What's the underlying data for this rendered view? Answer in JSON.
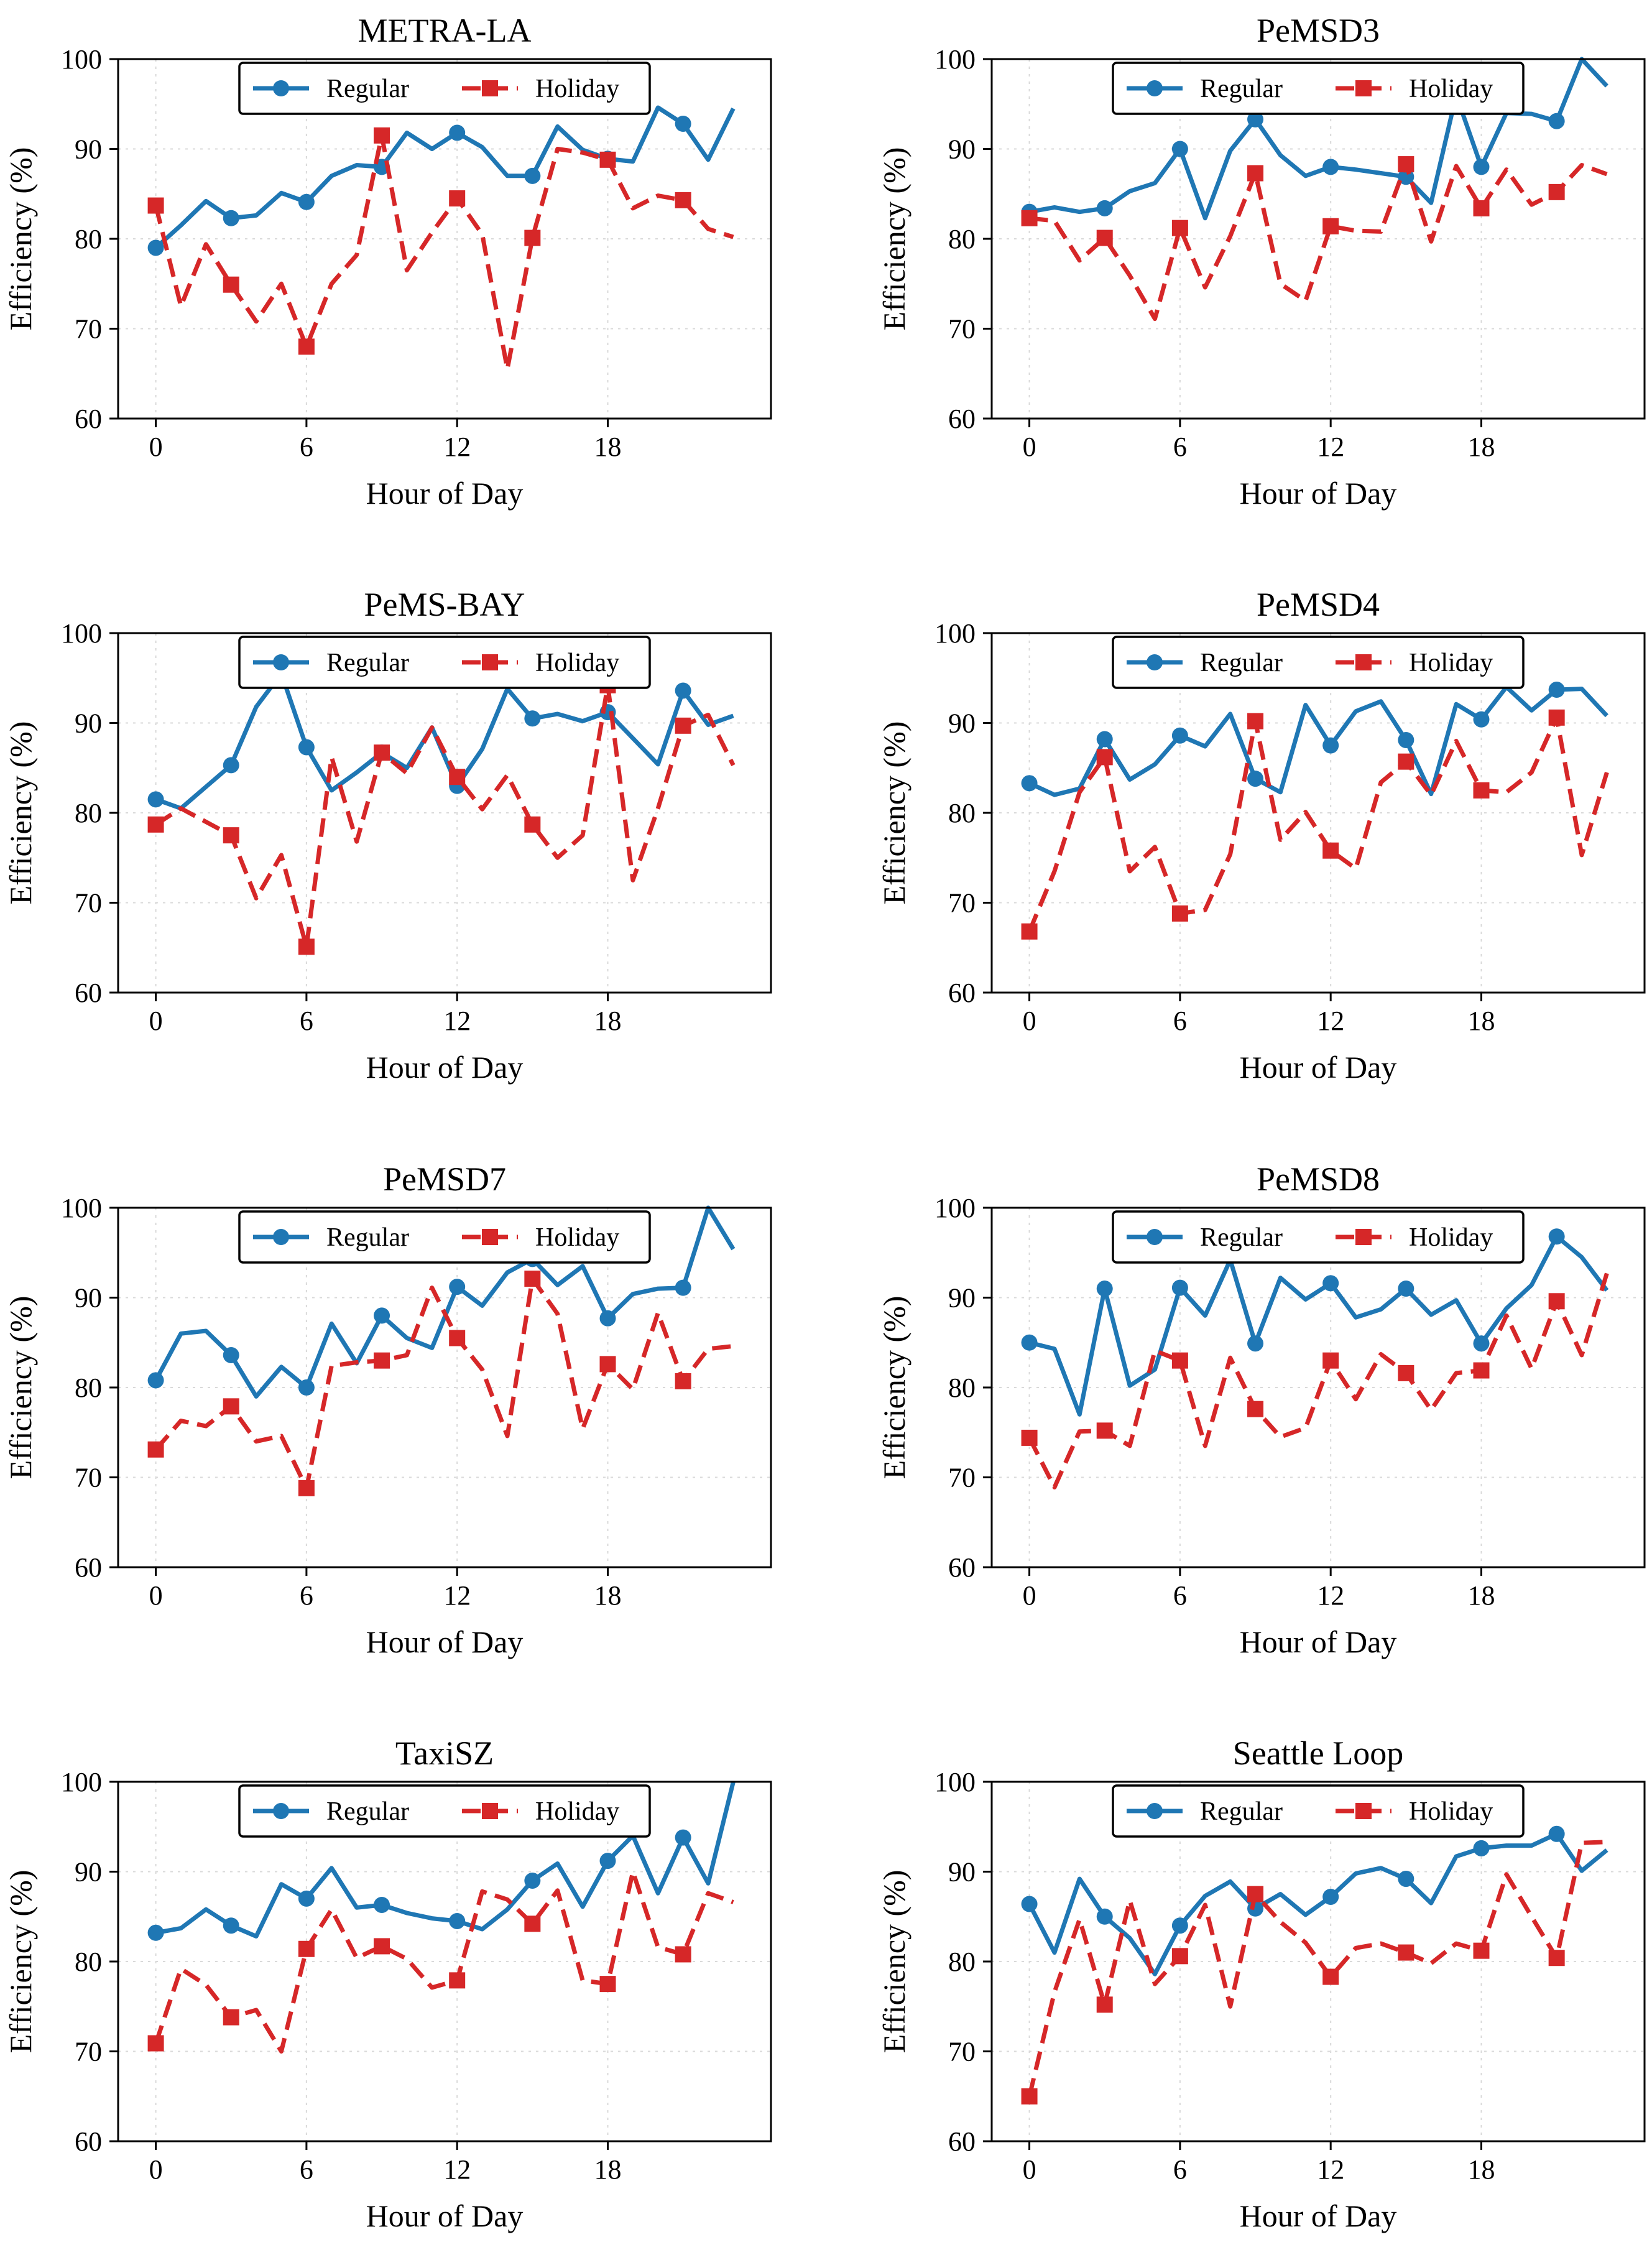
{
  "figure": {
    "series_names": [
      "Regular",
      "Holiday"
    ],
    "colors": {
      "Regular": "#1f77b4",
      "Holiday": "#d62728"
    },
    "icons": {
      "Regular": "circle-marker-solid-line",
      "Holiday": "square-marker-dashed-line"
    }
  },
  "chart_data": [
    {
      "type": "line",
      "title": "METRA-LA",
      "xlabel": "Hour of Day",
      "ylabel": "Efficiency (%)",
      "xlim": [
        -1.5,
        24.5
      ],
      "ylim": [
        60,
        100
      ],
      "xticks": [
        0,
        6,
        12,
        18
      ],
      "yticks": [
        60,
        70,
        80,
        90,
        100
      ],
      "grid": true,
      "legend": "top-center",
      "x": [
        0,
        1,
        2,
        3,
        4,
        5,
        6,
        7,
        8,
        9,
        10,
        11,
        12,
        13,
        14,
        15,
        16,
        17,
        18,
        19,
        20,
        21,
        22,
        23
      ],
      "marker_every": 3,
      "series": [
        {
          "name": "Regular",
          "values": [
            79.0,
            81.5,
            84.2,
            82.3,
            82.6,
            85.1,
            84.1,
            87.0,
            88.2,
            88.0,
            91.8,
            90.0,
            91.8,
            90.2,
            87.0,
            87.0,
            92.5,
            89.9,
            88.9,
            88.6,
            94.6,
            92.8,
            88.8,
            94.5
          ]
        },
        {
          "name": "Holiday",
          "values": [
            83.7,
            72.5,
            79.4,
            74.9,
            70.8,
            75.0,
            68.0,
            75.0,
            78.2,
            91.5,
            76.5,
            80.7,
            84.5,
            80.5,
            65.5,
            80.1,
            90.0,
            89.6,
            88.8,
            83.4,
            84.8,
            84.3,
            81.1,
            80.2
          ]
        }
      ]
    },
    {
      "type": "line",
      "title": "PeMSD3",
      "xlabel": "Hour of Day",
      "ylabel": "Efficiency (%)",
      "xlim": [
        -1.5,
        24.5
      ],
      "ylim": [
        60,
        100
      ],
      "xticks": [
        0,
        6,
        12,
        18
      ],
      "yticks": [
        60,
        70,
        80,
        90,
        100
      ],
      "grid": true,
      "legend": "top-center",
      "x": [
        0,
        1,
        2,
        3,
        4,
        5,
        6,
        7,
        8,
        9,
        10,
        11,
        12,
        13,
        14,
        15,
        16,
        17,
        18,
        19,
        20,
        21,
        22,
        23
      ],
      "marker_every": 3,
      "series": [
        {
          "name": "Regular",
          "values": [
            83.0,
            83.5,
            83.0,
            83.4,
            85.3,
            86.2,
            90.0,
            82.3,
            89.8,
            93.3,
            89.3,
            87.0,
            88.0,
            87.7,
            87.3,
            86.9,
            84.0,
            96.0,
            88.0,
            94.0,
            93.9,
            93.1,
            100.0,
            97.0
          ]
        },
        {
          "name": "Holiday",
          "values": [
            82.3,
            82.0,
            77.6,
            80.1,
            75.9,
            71.1,
            81.2,
            74.6,
            80.3,
            87.3,
            75.0,
            73.1,
            81.4,
            80.9,
            80.8,
            88.3,
            79.7,
            88.1,
            83.4,
            87.7,
            83.8,
            85.2,
            88.2,
            87.2
          ]
        }
      ]
    },
    {
      "type": "line",
      "title": "PeMS-BAY",
      "xlabel": "Hour of Day",
      "ylabel": "Efficiency (%)",
      "xlim": [
        -1.5,
        24.5
      ],
      "ylim": [
        60,
        100
      ],
      "xticks": [
        0,
        6,
        12,
        18
      ],
      "yticks": [
        60,
        70,
        80,
        90,
        100
      ],
      "grid": true,
      "legend": "top-center",
      "x": [
        0,
        1,
        2,
        3,
        4,
        5,
        6,
        7,
        8,
        9,
        10,
        11,
        12,
        13,
        14,
        15,
        16,
        17,
        18,
        19,
        20,
        21,
        22,
        23
      ],
      "marker_every": 3,
      "series": [
        {
          "name": "Regular",
          "values": [
            81.5,
            80.5,
            82.9,
            85.3,
            91.8,
            95.5,
            87.3,
            82.5,
            84.5,
            86.7,
            85.0,
            89.5,
            83.0,
            87.1,
            93.8,
            90.5,
            91.0,
            90.2,
            91.2,
            88.3,
            85.4,
            93.6,
            89.8,
            90.8
          ]
        },
        {
          "name": "Holiday",
          "values": [
            78.7,
            80.5,
            79.0,
            77.5,
            70.5,
            75.3,
            65.1,
            86.2,
            76.8,
            86.7,
            84.4,
            89.5,
            84.0,
            80.4,
            84.2,
            78.7,
            75.0,
            77.5,
            94.2,
            72.5,
            80.5,
            89.7,
            90.9,
            85.3
          ]
        }
      ]
    },
    {
      "type": "line",
      "title": "PeMSD4",
      "xlabel": "Hour of Day",
      "ylabel": "Efficiency (%)",
      "xlim": [
        -1.5,
        24.5
      ],
      "ylim": [
        60,
        100
      ],
      "xticks": [
        0,
        6,
        12,
        18
      ],
      "yticks": [
        60,
        70,
        80,
        90,
        100
      ],
      "grid": true,
      "legend": "top-center",
      "x": [
        0,
        1,
        2,
        3,
        4,
        5,
        6,
        7,
        8,
        9,
        10,
        11,
        12,
        13,
        14,
        15,
        16,
        17,
        18,
        19,
        20,
        21,
        22,
        23
      ],
      "marker_every": 3,
      "series": [
        {
          "name": "Regular",
          "values": [
            83.3,
            82.0,
            82.7,
            88.2,
            83.7,
            85.4,
            88.6,
            87.4,
            91.0,
            83.8,
            82.3,
            92.0,
            87.5,
            91.3,
            92.4,
            88.1,
            82.1,
            92.1,
            90.4,
            94.0,
            91.4,
            93.7,
            93.8,
            90.8
          ]
        },
        {
          "name": "Holiday",
          "values": [
            66.8,
            73.5,
            82.3,
            86.2,
            73.5,
            76.2,
            68.8,
            69.2,
            75.4,
            90.2,
            77.0,
            80.1,
            75.8,
            73.8,
            83.4,
            85.7,
            82.0,
            88.0,
            82.5,
            82.3,
            84.5,
            90.6,
            75.3,
            84.5
          ]
        }
      ]
    },
    {
      "type": "line",
      "title": "PeMSD7",
      "xlabel": "Hour of Day",
      "ylabel": "Efficiency (%)",
      "xlim": [
        -1.5,
        24.5
      ],
      "ylim": [
        60,
        100
      ],
      "xticks": [
        0,
        6,
        12,
        18
      ],
      "yticks": [
        60,
        70,
        80,
        90,
        100
      ],
      "grid": true,
      "legend": "top-center",
      "x": [
        0,
        1,
        2,
        3,
        4,
        5,
        6,
        7,
        8,
        9,
        10,
        11,
        12,
        13,
        14,
        15,
        16,
        17,
        18,
        19,
        20,
        21,
        22,
        23
      ],
      "marker_every": 3,
      "series": [
        {
          "name": "Regular",
          "values": [
            80.8,
            86.0,
            86.3,
            83.6,
            79.0,
            82.3,
            80.0,
            87.1,
            82.7,
            88.0,
            85.5,
            84.4,
            91.2,
            89.1,
            92.8,
            94.3,
            91.4,
            93.5,
            87.7,
            90.4,
            91.0,
            91.1,
            100.0,
            95.4
          ]
        },
        {
          "name": "Holiday",
          "values": [
            73.1,
            76.3,
            75.7,
            77.9,
            74.0,
            74.6,
            68.8,
            82.4,
            82.8,
            83.0,
            83.6,
            91.1,
            85.5,
            82.0,
            74.6,
            92.1,
            88.2,
            75.4,
            82.6,
            79.8,
            88.3,
            80.7,
            84.3,
            84.6
          ]
        }
      ]
    },
    {
      "type": "line",
      "title": "PeMSD8",
      "xlabel": "Hour of Day",
      "ylabel": "Efficiency (%)",
      "xlim": [
        -1.5,
        24.5
      ],
      "ylim": [
        60,
        100
      ],
      "xticks": [
        0,
        6,
        12,
        18
      ],
      "yticks": [
        60,
        70,
        80,
        90,
        100
      ],
      "grid": true,
      "legend": "top-center",
      "x": [
        0,
        1,
        2,
        3,
        4,
        5,
        6,
        7,
        8,
        9,
        10,
        11,
        12,
        13,
        14,
        15,
        16,
        17,
        18,
        19,
        20,
        21,
        22,
        23
      ],
      "marker_every": 3,
      "series": [
        {
          "name": "Regular",
          "values": [
            85.0,
            84.3,
            77.0,
            91.0,
            80.2,
            82.0,
            91.1,
            88.0,
            94.2,
            84.9,
            92.2,
            89.8,
            91.6,
            87.8,
            88.7,
            91.0,
            88.1,
            89.7,
            84.9,
            88.8,
            91.4,
            96.8,
            94.5,
            90.8
          ]
        },
        {
          "name": "Holiday",
          "values": [
            74.4,
            68.9,
            75.1,
            75.2,
            73.5,
            84.1,
            83.0,
            73.5,
            83.3,
            77.6,
            74.5,
            75.5,
            83.0,
            78.7,
            83.7,
            81.6,
            77.5,
            81.6,
            81.9,
            88.0,
            82.1,
            89.6,
            83.6,
            92.7
          ]
        }
      ]
    },
    {
      "type": "line",
      "title": "TaxiSZ",
      "xlabel": "Hour of Day",
      "ylabel": "Efficiency (%)",
      "xlim": [
        -1.5,
        24.5
      ],
      "ylim": [
        60,
        100
      ],
      "xticks": [
        0,
        6,
        12,
        18
      ],
      "yticks": [
        60,
        70,
        80,
        90,
        100
      ],
      "grid": true,
      "legend": "top-center",
      "x": [
        0,
        1,
        2,
        3,
        4,
        5,
        6,
        7,
        8,
        9,
        10,
        11,
        12,
        13,
        14,
        15,
        16,
        17,
        18,
        19,
        20,
        21,
        22,
        23
      ],
      "marker_every": 3,
      "series": [
        {
          "name": "Regular",
          "values": [
            83.2,
            83.7,
            85.8,
            84.0,
            82.8,
            88.6,
            87.0,
            90.4,
            86.0,
            86.3,
            85.4,
            84.8,
            84.5,
            83.6,
            85.8,
            89.0,
            90.9,
            86.1,
            91.2,
            94.0,
            87.6,
            93.8,
            88.7,
            100.0
          ]
        },
        {
          "name": "Holiday",
          "values": [
            70.9,
            79.2,
            77.4,
            73.8,
            74.6,
            70.0,
            81.4,
            85.8,
            80.4,
            81.7,
            80.3,
            77.1,
            77.9,
            87.8,
            86.9,
            84.2,
            87.9,
            77.9,
            77.5,
            90.0,
            81.6,
            80.8,
            87.6,
            86.6
          ]
        }
      ]
    },
    {
      "type": "line",
      "title": "Seattle Loop",
      "xlabel": "Hour of Day",
      "ylabel": "Efficiency (%)",
      "xlim": [
        -1.5,
        24.5
      ],
      "ylim": [
        60,
        100
      ],
      "xticks": [
        0,
        6,
        12,
        18
      ],
      "yticks": [
        60,
        70,
        80,
        90,
        100
      ],
      "grid": true,
      "legend": "top-center",
      "x": [
        0,
        1,
        2,
        3,
        4,
        5,
        6,
        7,
        8,
        9,
        10,
        11,
        12,
        13,
        14,
        15,
        16,
        17,
        18,
        19,
        20,
        21,
        22,
        23
      ],
      "marker_every": 3,
      "series": [
        {
          "name": "Regular",
          "values": [
            86.4,
            81.0,
            89.2,
            85.0,
            82.6,
            78.6,
            84.0,
            87.3,
            88.9,
            85.9,
            87.5,
            85.2,
            87.2,
            89.8,
            90.4,
            89.2,
            86.5,
            91.7,
            92.6,
            92.9,
            92.9,
            94.2,
            90.1,
            92.4
          ]
        },
        {
          "name": "Holiday",
          "values": [
            65.0,
            76.6,
            84.7,
            75.2,
            86.8,
            77.5,
            80.6,
            86.3,
            75.0,
            87.5,
            84.4,
            82.1,
            78.3,
            81.5,
            82.0,
            81.0,
            79.8,
            82.0,
            81.2,
            89.7,
            85.0,
            80.4,
            93.2,
            93.3
          ]
        }
      ]
    }
  ]
}
